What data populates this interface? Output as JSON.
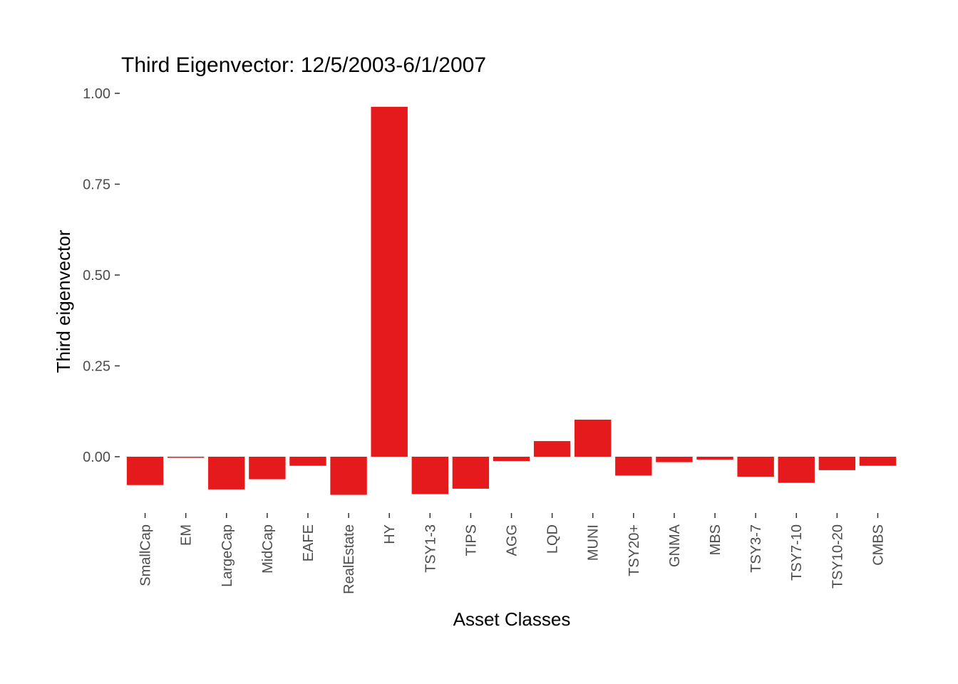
{
  "chart_data": {
    "type": "bar",
    "title": "Third Eigenvector: 12/5/2003-6/1/2007",
    "xlabel": "Asset Classes",
    "ylabel": "Third eigenvector",
    "categories": [
      "SmallCap",
      "EM",
      "LargeCap",
      "MidCap",
      "EAFE",
      "RealEstate",
      "HY",
      "TSY1-3",
      "TIPS",
      "AGG",
      "LQD",
      "MUNI",
      "TSY20+",
      "GNMA",
      "MBS",
      "TSY3-7",
      "TSY7-10",
      "TSY10-20",
      "CMBS"
    ],
    "values": [
      -0.078,
      -0.003,
      -0.09,
      -0.062,
      -0.025,
      -0.105,
      0.963,
      -0.103,
      -0.088,
      -0.012,
      0.043,
      0.102,
      -0.052,
      -0.015,
      -0.008,
      -0.055,
      -0.072,
      -0.037,
      -0.025
    ],
    "ylim": [
      -0.125,
      1.0
    ],
    "yticks": [
      0,
      0.25,
      0.5,
      0.75,
      1.0
    ],
    "ytick_labels": [
      "0.00",
      "0.25",
      "0.50",
      "0.75",
      "1.00"
    ],
    "grid": false,
    "bar_color": "#e41a1c"
  }
}
